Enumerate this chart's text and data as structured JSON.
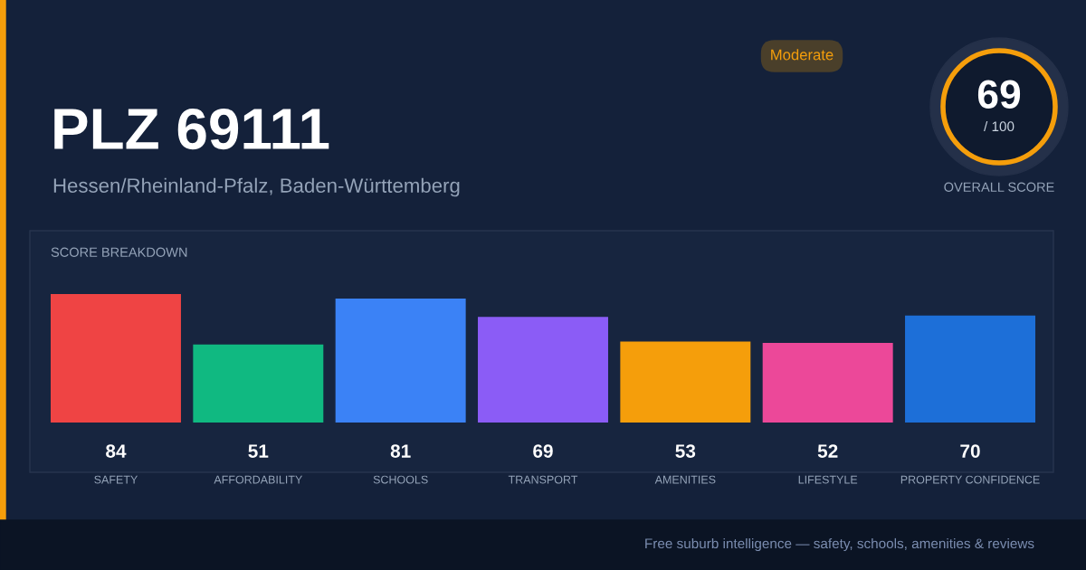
{
  "chart_data": [
    {
      "type": "other",
      "title": "PLZ 69111",
      "subtitle": "Hessen/Rheinland-Pfalz, Baden-Württemberg",
      "annotations": [
        "Moderate",
        "Free suburb intelligence — safety, schools, amenities & reviews"
      ]
    },
    {
      "type": "other",
      "title": "OVERALL SCORE",
      "color": "#f59e0b",
      "annotations": [
        "69",
        "/ 100"
      ]
    },
    {
      "type": "bar",
      "title": "SCORE BREAKDOWN",
      "categories": [
        "SAFETY",
        "AFFORDABILITY",
        "SCHOOLS",
        "TRANSPORT",
        "AMENITIES",
        "LIFESTYLE",
        "PROPERTY CONFIDENCE"
      ],
      "values": [
        84,
        51,
        81,
        69,
        53,
        52,
        70
      ],
      "colors": [
        "#ef4444",
        "#10b981",
        "#3b82f6",
        "#8b5cf6",
        "#f59e0b",
        "#ec4899",
        "#1d6fd8"
      ],
      "data_labels": true,
      "tick_labels": "x",
      "grid": false
    }
  ]
}
